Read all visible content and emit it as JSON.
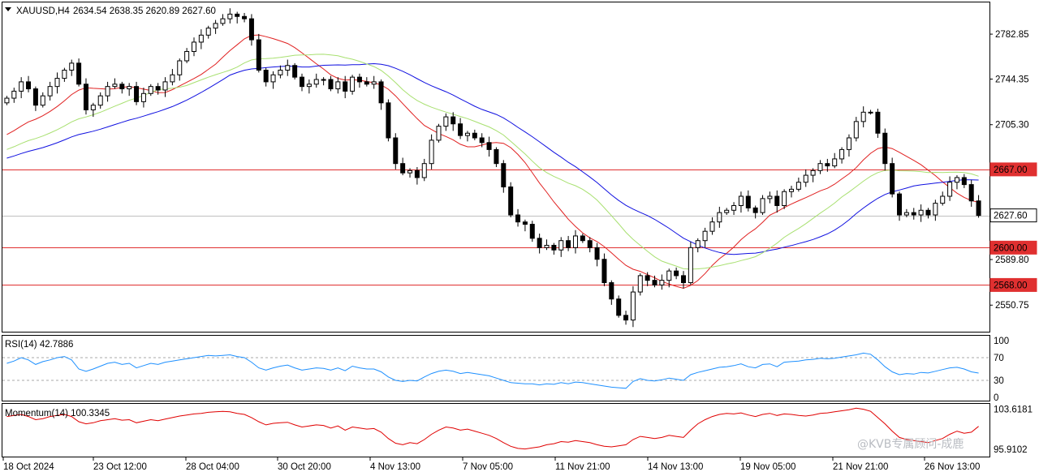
{
  "header": {
    "symbol": "XAUUSD,H4",
    "ohlc": "2634.54 2638.35 2620.89 2627.60"
  },
  "watermark": "@KVB专属顾问-成鹿",
  "colors": {
    "candle": "#000000",
    "hline": "#e03030",
    "ma_red": "#e02020",
    "ma_blue": "#1010e0",
    "ma_green": "#a8e070",
    "rsi": "#1e90ff",
    "momentum": "#e00000"
  },
  "chart_data": [
    {
      "type": "candlestick",
      "title": "XAUUSD,H4",
      "ylim": [
        2528,
        2810
      ],
      "y_ticks": [
        "2782.85",
        "2744.35",
        "2705.30",
        "2589.80",
        "2550.75"
      ],
      "x_tick_labels": [
        "18 Oct 2024",
        "23 Oct 12:00",
        "28 Oct 04:00",
        "30 Oct 20:00",
        "4 Nov 13:00",
        "7 Nov 05:00",
        "11 Nov 21:00",
        "14 Nov 13:00",
        "19 Nov 05:00",
        "21 Nov 21:00",
        "26 Nov 13:00"
      ],
      "horizontal_lines": [
        {
          "value": 2667.0,
          "label": "2667.00"
        },
        {
          "value": 2600.0,
          "label": "2600.00"
        },
        {
          "value": 2568.0,
          "label": "2568.00"
        }
      ],
      "current_price": {
        "value": 2627.6,
        "label": "2627.60"
      },
      "closes": [
        2728,
        2734,
        2742,
        2736,
        2722,
        2730,
        2738,
        2745,
        2752,
        2758,
        2740,
        2718,
        2722,
        2730,
        2738,
        2740,
        2736,
        2738,
        2725,
        2732,
        2738,
        2735,
        2742,
        2748,
        2760,
        2768,
        2776,
        2782,
        2788,
        2792,
        2796,
        2800,
        2798,
        2796,
        2778,
        2752,
        2742,
        2748,
        2752,
        2756,
        2746,
        2738,
        2740,
        2744,
        2744,
        2736,
        2742,
        2734,
        2746,
        2742,
        2740,
        2742,
        2724,
        2694,
        2672,
        2664,
        2666,
        2660,
        2672,
        2692,
        2704,
        2712,
        2706,
        2696,
        2698,
        2694,
        2690,
        2684,
        2672,
        2652,
        2628,
        2622,
        2620,
        2608,
        2600,
        2602,
        2598,
        2606,
        2600,
        2610,
        2606,
        2600,
        2590,
        2570,
        2556,
        2542,
        2538,
        2562,
        2576,
        2572,
        2568,
        2572,
        2580,
        2576,
        2570,
        2600,
        2606,
        2614,
        2622,
        2630,
        2632,
        2636,
        2644,
        2634,
        2630,
        2642,
        2644,
        2636,
        2648,
        2650,
        2656,
        2662,
        2666,
        2672,
        2670,
        2676,
        2684,
        2694,
        2708,
        2716,
        2716,
        2698,
        2672,
        2646,
        2628,
        2630,
        2628,
        2632,
        2628,
        2638,
        2644,
        2656,
        2660,
        2654,
        2640,
        2627.6
      ],
      "ma_red": {
        "start": 2694,
        "end": 2647
      },
      "ma_blue": {
        "start": 2675,
        "end": 2643
      },
      "ma_green": {
        "start": 2682,
        "end": 2648
      }
    },
    {
      "type": "line",
      "title": "RSI(14) 42.7886",
      "series": [
        {
          "name": "RSI(14)",
          "last": 42.7886
        }
      ],
      "ylim": [
        0,
        100
      ],
      "y_ticks": [
        "100",
        "70",
        "30",
        "0"
      ],
      "levels": [
        70,
        30
      ],
      "values": [
        60,
        64,
        70,
        66,
        58,
        63,
        66,
        70,
        72,
        66,
        50,
        46,
        50,
        55,
        60,
        62,
        58,
        60,
        52,
        56,
        60,
        58,
        62,
        64,
        66,
        68,
        70,
        72,
        74,
        73,
        74,
        75,
        72,
        70,
        62,
        52,
        48,
        52,
        55,
        57,
        52,
        48,
        50,
        52,
        51,
        48,
        52,
        47,
        55,
        52,
        50,
        50,
        45,
        36,
        30,
        28,
        30,
        29,
        36,
        42,
        46,
        48,
        46,
        42,
        44,
        42,
        40,
        38,
        34,
        30,
        26,
        25,
        24,
        24,
        22,
        24,
        23,
        26,
        24,
        27,
        26,
        24,
        22,
        20,
        18,
        17,
        16,
        28,
        33,
        30,
        29,
        31,
        34,
        32,
        30,
        40,
        44,
        47,
        50,
        53,
        54,
        56,
        59,
        54,
        52,
        58,
        59,
        54,
        62,
        63,
        64,
        66,
        67,
        69,
        68,
        69,
        71,
        73,
        75,
        78,
        76,
        66,
        54,
        45,
        40,
        42,
        41,
        44,
        43,
        46,
        49,
        52,
        53,
        50,
        45,
        42.79
      ]
    },
    {
      "type": "line",
      "title": "Momentum(14) 100.3345",
      "series": [
        {
          "name": "Momentum(14)",
          "last": 100.3345
        }
      ],
      "ylim": [
        95.0,
        104.0
      ],
      "y_ticks": [
        "103.6181",
        "95.9102"
      ],
      "values": [
        102.2,
        102.4,
        102.6,
        102.2,
        101.6,
        101.8,
        102.2,
        102.4,
        102.6,
        102.2,
        101.2,
        100.8,
        101.0,
        101.4,
        101.6,
        101.8,
        101.5,
        101.6,
        101.0,
        101.3,
        101.6,
        101.4,
        101.7,
        102.0,
        102.3,
        102.5,
        102.7,
        102.8,
        103.0,
        103.1,
        103.2,
        103.1,
        102.8,
        102.6,
        102.0,
        101.2,
        100.6,
        100.9,
        101.0,
        101.1,
        100.6,
        100.2,
        100.4,
        100.6,
        100.5,
        100.0,
        100.4,
        99.6,
        100.2,
        100.0,
        99.8,
        99.9,
        99.2,
        98.0,
        97.1,
        96.8,
        97.2,
        97.0,
        97.8,
        98.8,
        99.6,
        100.2,
        100.0,
        99.6,
        99.8,
        99.4,
        99.0,
        98.6,
        98.0,
        97.2,
        96.5,
        96.1,
        96.0,
        96.2,
        96.4,
        96.8,
        97.0,
        97.4,
        97.3,
        97.6,
        97.4,
        97.2,
        96.8,
        96.5,
        96.4,
        96.6,
        96.8,
        97.8,
        98.4,
        98.2,
        98.0,
        98.2,
        98.6,
        98.4,
        98.2,
        99.6,
        100.8,
        101.6,
        102.2,
        102.6,
        102.8,
        102.7,
        102.9,
        102.5,
        102.2,
        102.6,
        102.8,
        102.4,
        102.7,
        102.6,
        102.4,
        102.3,
        102.5,
        102.8,
        102.9,
        103.1,
        103.3,
        103.5,
        103.8,
        103.6,
        103.2,
        102.0,
        100.8,
        99.4,
        98.2,
        97.8,
        97.6,
        97.4,
        97.2,
        97.6,
        98.0,
        98.8,
        99.4,
        99.0,
        99.2,
        100.33
      ]
    }
  ]
}
